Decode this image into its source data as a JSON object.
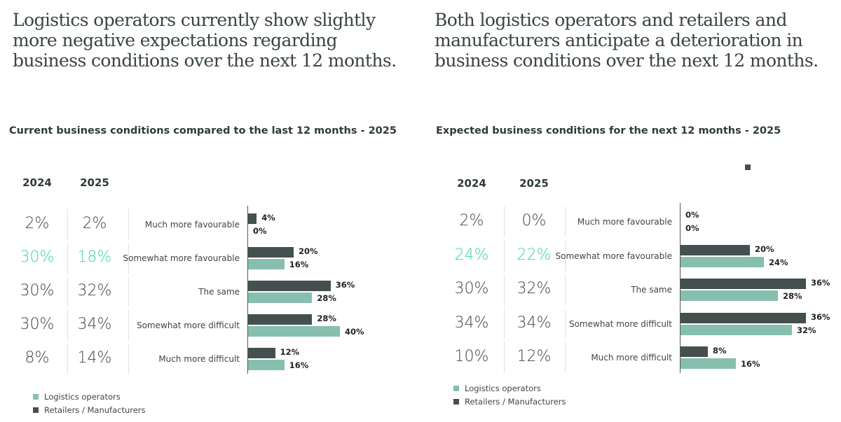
{
  "headlines": {
    "left": "Logistics operators currently show slightly more negative expectations regarding business conditions over the next 12 months.",
    "right": "Both logistics operators and retailers and manufacturers anticipate a deterioration in business conditions over the next 12 months."
  },
  "colors": {
    "retailers": "#445050",
    "logistics": "#86bfae",
    "highlight": "#3ed598"
  },
  "legend": {
    "logistics": "Logistics operators",
    "retailers": "Retailers / Manufacturers"
  },
  "chart_data": [
    {
      "type": "bar",
      "orientation": "horizontal",
      "title": "Current business conditions compared to the last 12 months - 2025",
      "categories": [
        "Much more favourable",
        "Somewhat more favourable",
        "The same",
        "Somewhat more difficult",
        "Much more difficult"
      ],
      "series": [
        {
          "name": "Retailers / Manufacturers",
          "values": [
            4,
            20,
            36,
            28,
            12
          ],
          "labels": [
            "4%",
            "20%",
            "36%",
            "28%",
            "12%"
          ]
        },
        {
          "name": "Logistics operators",
          "values": [
            0,
            16,
            28,
            40,
            16
          ],
          "labels": [
            "0%",
            "16%",
            "28%",
            "40%",
            "16%"
          ]
        }
      ],
      "table": {
        "col_2024": "2024",
        "col_2025": "2025",
        "values_2024": [
          "2%",
          "30%",
          "30%",
          "30%",
          "8%"
        ],
        "values_2025": [
          "2%",
          "18%",
          "32%",
          "34%",
          "14%"
        ],
        "highlight_row": 1
      },
      "xlim": [
        0,
        40
      ]
    },
    {
      "type": "bar",
      "orientation": "horizontal",
      "title": "Expected business conditions for the next 12 months - 2025",
      "categories": [
        "Much more favourable",
        "Somewhat more favourable",
        "The same",
        "Somewhat more difficult",
        "Much more difficult"
      ],
      "series": [
        {
          "name": "Retailers / Manufacturers",
          "values": [
            0,
            20,
            36,
            36,
            8
          ],
          "labels": [
            "0%",
            "20%",
            "36%",
            "36%",
            "8%"
          ]
        },
        {
          "name": "Logistics operators",
          "values": [
            0,
            24,
            28,
            32,
            16
          ],
          "labels": [
            "0%",
            "24%",
            "28%",
            "32%",
            "16%"
          ]
        }
      ],
      "table": {
        "col_2024": "2024",
        "col_2025": "2025",
        "values_2024": [
          "2%",
          "24%",
          "30%",
          "34%",
          "10%"
        ],
        "values_2025": [
          "0%",
          "22%",
          "32%",
          "34%",
          "12%"
        ],
        "highlight_row": 1
      },
      "xlim": [
        0,
        36
      ]
    }
  ]
}
